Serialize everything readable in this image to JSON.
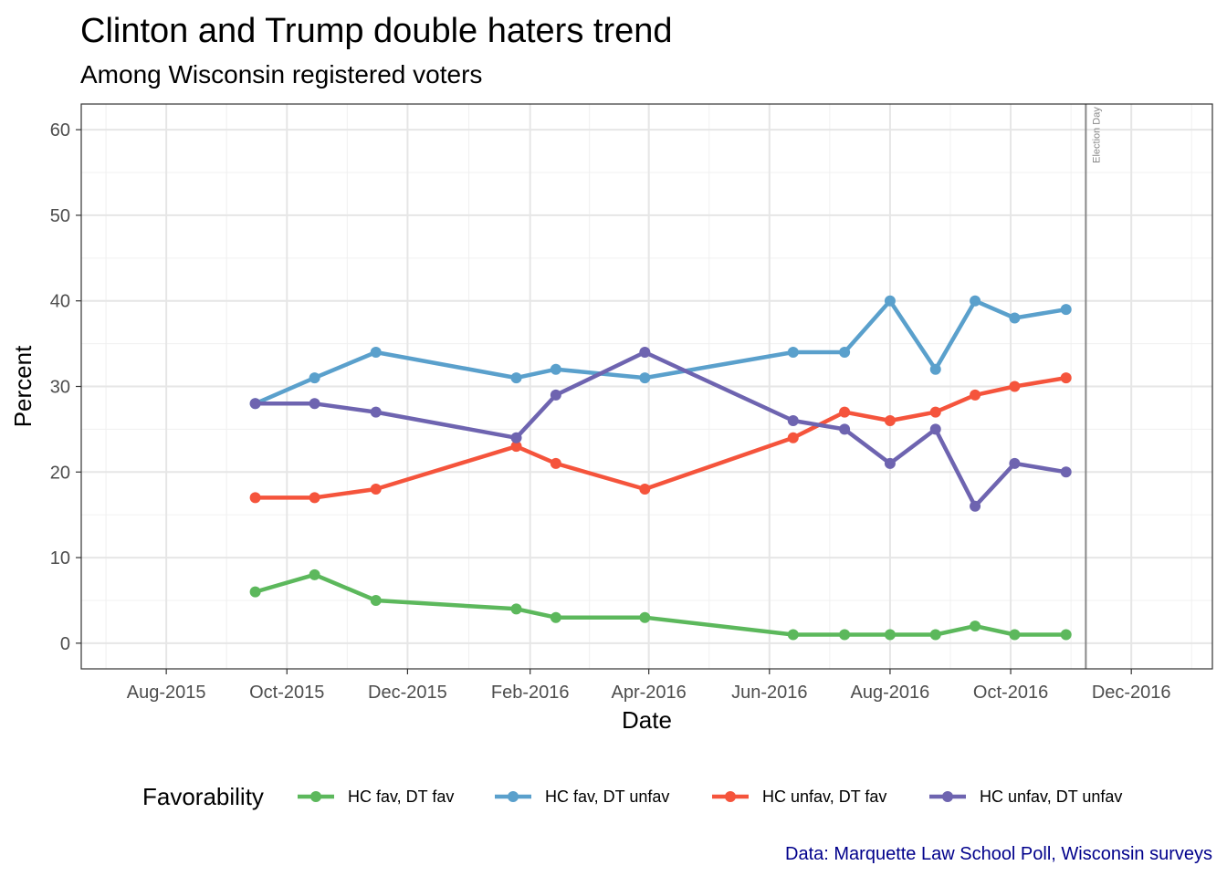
{
  "chart_data": {
    "type": "line",
    "title": "Clinton and Trump double haters trend",
    "subtitle": "Among Wisconsin registered voters",
    "xlabel": "Date",
    "ylabel": "Percent",
    "caption": "Data: Marquette Law School Poll, Wisconsin surveys",
    "caption_color": "#00008b",
    "x_scale": "date",
    "xlim": [
      "2015-06-19",
      "2017-01-11"
    ],
    "ylim": [
      -3,
      63
    ],
    "x_ticks": [
      {
        "date": "2015-08-01",
        "label": "Aug-2015"
      },
      {
        "date": "2015-10-01",
        "label": "Oct-2015"
      },
      {
        "date": "2015-12-01",
        "label": "Dec-2015"
      },
      {
        "date": "2016-02-01",
        "label": "Feb-2016"
      },
      {
        "date": "2016-04-01",
        "label": "Apr-2016"
      },
      {
        "date": "2016-06-01",
        "label": "Jun-2016"
      },
      {
        "date": "2016-08-01",
        "label": "Aug-2016"
      },
      {
        "date": "2016-10-01",
        "label": "Oct-2016"
      },
      {
        "date": "2016-12-01",
        "label": "Dec-2016"
      }
    ],
    "y_ticks": [
      0,
      10,
      20,
      30,
      40,
      50,
      60
    ],
    "grid": true,
    "legend": {
      "title": "Favorability",
      "position": "bottom"
    },
    "annotation": {
      "label": "Election Day",
      "date": "2016-11-08",
      "color": "#888888"
    },
    "x": [
      "2015-09-15",
      "2015-10-15",
      "2015-11-15",
      "2016-01-25",
      "2016-02-14",
      "2016-03-30",
      "2016-06-13",
      "2016-07-09",
      "2016-08-01",
      "2016-08-24",
      "2016-09-13",
      "2016-10-03",
      "2016-10-29"
    ],
    "series": [
      {
        "name": "HC fav, DT fav",
        "color": "#5cb85c",
        "values": [
          6,
          8,
          5,
          4,
          3,
          3,
          1,
          1,
          1,
          1,
          2,
          1,
          1
        ]
      },
      {
        "name": "HC fav, DT unfav",
        "color": "#5aa0cc",
        "values": [
          28,
          31,
          34,
          31,
          32,
          31,
          34,
          34,
          40,
          32,
          40,
          38,
          39
        ]
      },
      {
        "name": "HC unfav, DT fav",
        "color": "#f5543c",
        "values": [
          17,
          17,
          18,
          23,
          21,
          18,
          24,
          27,
          26,
          27,
          29,
          30,
          31
        ]
      },
      {
        "name": "HC unfav, DT unfav",
        "color": "#6e64b0",
        "values": [
          28,
          28,
          27,
          24,
          29,
          34,
          26,
          25,
          21,
          25,
          16,
          21,
          20
        ]
      }
    ]
  }
}
